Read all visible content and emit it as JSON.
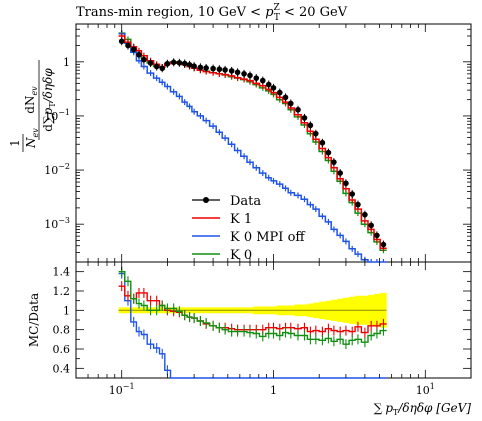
{
  "chart_data": {
    "type": "line",
    "title": "Trans-min region, 10 GeV < p_T^Z < 20 GeV",
    "title_text": {
      "prefix": "Trans-min region, 10 GeV < ",
      "p": "p",
      "sub": "T",
      "sup": "Z",
      "suffix": " < 20 GeV"
    },
    "ylabel": "1/N_ev dN_ev / d∑p_T/dηdφ",
    "ylabel_text": {
      "frac_top": "dN",
      "frac_top_sub": "ev",
      "frac_bottom_prefix": "d",
      "frac_bottom_sigma": "∑",
      "frac_bottom_rest": "p",
      "frac_bottom_sub": "T",
      "frac_bottom_tail": "/δηδφ",
      "norm_top": "1",
      "norm_bottom": "N",
      "norm_bottom_sub": "ev"
    },
    "xlabel": "∑ p_T/δηδφ [GeV]",
    "xlabel_text": {
      "sigma": "∑",
      "p": "p",
      "sub": "T",
      "rest": "/δηδφ [GeV]"
    },
    "ratio_ylabel": "MC/Data",
    "x_scale": "log",
    "xlim": [
      0.05,
      20
    ],
    "x_ticks": [
      {
        "value": 0.1,
        "label": "10",
        "exp": "−1"
      },
      {
        "value": 1,
        "label": "1",
        "exp": ""
      },
      {
        "value": 10,
        "label": "10",
        "exp": "1"
      }
    ],
    "main_panel": {
      "y_scale": "log",
      "ylim": [
        0.0002,
        5
      ],
      "y_ticks": [
        {
          "value": 1,
          "label": "1",
          "exp": ""
        },
        {
          "value": 0.1,
          "label": "10",
          "exp": "−1"
        },
        {
          "value": 0.01,
          "label": "10",
          "exp": "−2"
        },
        {
          "value": 0.001,
          "label": "10",
          "exp": "−3"
        }
      ]
    },
    "ratio_panel": {
      "ylim": [
        0.3,
        1.5
      ],
      "y_ticks": [
        {
          "value": 1.4,
          "label": "1.4"
        },
        {
          "value": 1.2,
          "label": "1.2"
        },
        {
          "value": 1.0,
          "label": "1"
        },
        {
          "value": 0.8,
          "label": "0.8"
        },
        {
          "value": 0.6,
          "label": "0.6"
        },
        {
          "value": 0.4,
          "label": "0.4"
        }
      ],
      "band_color": "#ffff00",
      "reference_line_color": "#999900"
    },
    "legend": {
      "position": "center-left"
    },
    "x": [
      0.1,
      0.11,
      0.12,
      0.13,
      0.14,
      0.155,
      0.17,
      0.185,
      0.2,
      0.22,
      0.24,
      0.26,
      0.28,
      0.3,
      0.33,
      0.36,
      0.4,
      0.44,
      0.48,
      0.53,
      0.58,
      0.64,
      0.7,
      0.77,
      0.85,
      0.93,
      1.0,
      1.1,
      1.2,
      1.3,
      1.45,
      1.6,
      1.75,
      1.9,
      2.1,
      2.3,
      2.5,
      2.75,
      3.0,
      3.3,
      3.6,
      4.0,
      4.4,
      4.8,
      5.3
    ],
    "series": [
      {
        "name": "Data",
        "color": "#000000",
        "style": "points",
        "values": [
          2.4,
          2.0,
          1.7,
          1.35,
          1.1,
          0.95,
          0.82,
          0.76,
          0.92,
          0.98,
          0.96,
          0.93,
          0.88,
          0.83,
          0.79,
          0.77,
          0.75,
          0.73,
          0.71,
          0.68,
          0.64,
          0.6,
          0.56,
          0.5,
          0.45,
          0.38,
          0.33,
          0.27,
          0.22,
          0.17,
          0.13,
          0.092,
          0.067,
          0.047,
          0.032,
          0.021,
          0.014,
          0.0088,
          0.0057,
          0.0036,
          0.0023,
          0.0015,
          0.00095,
          0.00062,
          0.00042
        ]
      },
      {
        "name": "K 1",
        "color": "#ee0000",
        "style": "step",
        "values": [
          3.0,
          2.3,
          1.9,
          1.6,
          1.3,
          1.05,
          0.9,
          0.8,
          0.92,
          0.97,
          0.94,
          0.88,
          0.82,
          0.76,
          0.7,
          0.66,
          0.63,
          0.6,
          0.58,
          0.55,
          0.51,
          0.48,
          0.45,
          0.4,
          0.36,
          0.31,
          0.27,
          0.22,
          0.18,
          0.14,
          0.105,
          0.075,
          0.052,
          0.037,
          0.025,
          0.017,
          0.011,
          0.0069,
          0.0045,
          0.0028,
          0.0019,
          0.00115,
          0.0008,
          0.00052,
          0.00036
        ]
      },
      {
        "name": "K 0 MPI off",
        "color": "#1e53e8",
        "style": "step",
        "values": [
          3.3,
          2.2,
          1.5,
          1.05,
          0.82,
          0.62,
          0.5,
          0.42,
          0.35,
          0.28,
          0.23,
          0.18,
          0.15,
          0.12,
          0.1,
          0.082,
          0.065,
          0.05,
          0.039,
          0.03,
          0.023,
          0.018,
          0.014,
          0.011,
          0.0088,
          0.0072,
          0.0063,
          0.0055,
          0.0046,
          0.0038,
          0.0034,
          0.0029,
          0.0023,
          0.0019,
          0.0014,
          0.0011,
          0.0008,
          0.00062,
          0.00048,
          0.00035,
          0.00028,
          0.00022,
          0.00018,
          0.00015,
          0.00012
        ]
      },
      {
        "name": "K 0",
        "color": "#109010",
        "style": "step",
        "values": [
          3.4,
          2.6,
          1.9,
          1.45,
          1.15,
          0.95,
          0.82,
          0.8,
          0.94,
          1.0,
          0.95,
          0.88,
          0.82,
          0.76,
          0.7,
          0.67,
          0.63,
          0.6,
          0.57,
          0.53,
          0.5,
          0.47,
          0.43,
          0.38,
          0.33,
          0.29,
          0.25,
          0.2,
          0.17,
          0.13,
          0.096,
          0.068,
          0.047,
          0.033,
          0.022,
          0.015,
          0.0095,
          0.0062,
          0.0037,
          0.0025,
          0.0016,
          0.001,
          0.0007,
          0.00047,
          0.00033
        ]
      }
    ],
    "ratio_series": [
      {
        "name": "K 1",
        "color": "#ee0000",
        "values": [
          1.25,
          1.15,
          1.12,
          1.18,
          1.18,
          1.1,
          1.1,
          1.05,
          1.0,
          0.99,
          0.98,
          0.95,
          0.93,
          0.92,
          0.89,
          0.86,
          0.84,
          0.82,
          0.82,
          0.81,
          0.8,
          0.8,
          0.8,
          0.8,
          0.8,
          0.82,
          0.82,
          0.81,
          0.82,
          0.82,
          0.81,
          0.82,
          0.78,
          0.79,
          0.78,
          0.81,
          0.79,
          0.78,
          0.79,
          0.78,
          0.83,
          0.77,
          0.84,
          0.84,
          0.86
        ]
      },
      {
        "name": "K 0 MPI off",
        "color": "#1e53e8",
        "values": [
          1.38,
          1.1,
          0.88,
          0.78,
          0.75,
          0.65,
          0.61,
          0.55,
          0.38,
          0.29,
          0.24,
          0.19,
          0.17,
          0.145,
          0.127,
          0.106,
          0.087,
          0.068,
          0.055,
          0.044,
          0.036,
          0.03,
          0.025,
          0.022,
          0.02,
          0.019,
          0.019,
          0.02,
          0.021,
          0.022,
          0.026,
          0.032,
          0.034,
          0.04,
          0.044,
          0.052,
          0.057,
          0.07,
          0.084,
          0.097,
          0.12,
          0.15,
          0.19,
          0.24,
          0.29
        ]
      },
      {
        "name": "K 0",
        "color": "#109010",
        "values": [
          1.4,
          1.3,
          1.12,
          1.07,
          1.05,
          1.0,
          1.0,
          1.05,
          1.02,
          1.02,
          0.99,
          0.95,
          0.93,
          0.92,
          0.89,
          0.87,
          0.84,
          0.82,
          0.8,
          0.78,
          0.78,
          0.78,
          0.77,
          0.76,
          0.73,
          0.76,
          0.76,
          0.74,
          0.77,
          0.76,
          0.74,
          0.74,
          0.7,
          0.7,
          0.69,
          0.71,
          0.68,
          0.7,
          0.65,
          0.69,
          0.7,
          0.67,
          0.74,
          0.76,
          0.79
        ]
      }
    ],
    "data_uncertainty_band": {
      "name": "Data uncertainty",
      "lower": [
        0.97,
        0.97,
        0.97,
        0.97,
        0.97,
        0.97,
        0.97,
        0.97,
        0.97,
        0.97,
        0.97,
        0.97,
        0.97,
        0.97,
        0.97,
        0.97,
        0.97,
        0.97,
        0.97,
        0.97,
        0.97,
        0.97,
        0.97,
        0.96,
        0.96,
        0.96,
        0.96,
        0.95,
        0.95,
        0.95,
        0.94,
        0.94,
        0.93,
        0.92,
        0.91,
        0.9,
        0.89,
        0.88,
        0.87,
        0.86,
        0.85,
        0.85,
        0.84,
        0.83,
        0.82
      ],
      "upper": [
        1.03,
        1.03,
        1.03,
        1.03,
        1.03,
        1.03,
        1.03,
        1.03,
        1.03,
        1.03,
        1.03,
        1.03,
        1.03,
        1.03,
        1.03,
        1.03,
        1.03,
        1.03,
        1.03,
        1.03,
        1.03,
        1.03,
        1.03,
        1.04,
        1.04,
        1.04,
        1.04,
        1.05,
        1.05,
        1.05,
        1.06,
        1.06,
        1.07,
        1.08,
        1.09,
        1.1,
        1.11,
        1.12,
        1.13,
        1.14,
        1.15,
        1.15,
        1.16,
        1.17,
        1.18
      ]
    }
  }
}
